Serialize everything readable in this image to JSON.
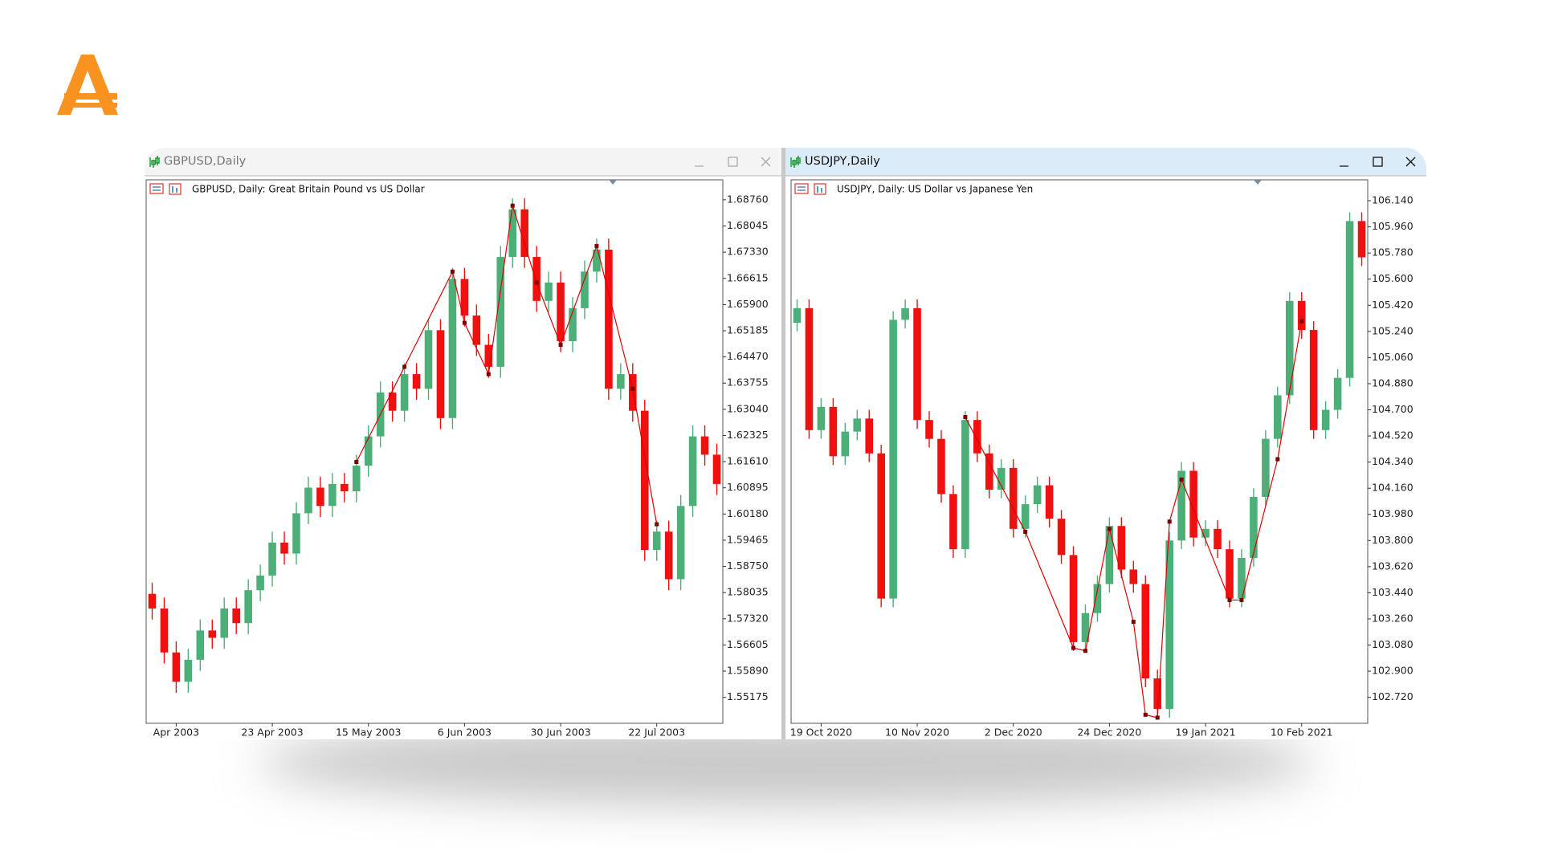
{
  "chart_data": [
    {
      "type": "candlestick",
      "window_title": "GBPUSD,Daily",
      "title": "GBPUSD, Daily:  Great Britain Pound vs US Dollar",
      "categories": [
        null,
        null,
        "Apr 2003",
        null,
        null,
        null,
        null,
        null,
        null,
        null,
        "23 Apr 2003",
        null,
        null,
        null,
        null,
        null,
        null,
        null,
        "15 May 2003",
        null,
        null,
        null,
        null,
        null,
        null,
        null,
        "6 Jun 2003",
        null,
        null,
        null,
        null,
        null,
        null,
        null,
        "30 Jun 2003",
        null,
        null,
        null,
        null,
        null,
        null,
        null,
        "22 Jul 2003",
        null,
        null,
        null,
        null,
        null
      ],
      "open": [
        1.58,
        1.576,
        1.564,
        1.556,
        1.562,
        1.57,
        1.568,
        1.576,
        1.572,
        1.581,
        1.585,
        1.594,
        1.591,
        1.602,
        1.609,
        1.604,
        1.61,
        1.608,
        1.615,
        1.623,
        1.635,
        1.63,
        1.64,
        1.636,
        1.652,
        1.628,
        1.666,
        1.656,
        1.648,
        1.642,
        1.672,
        1.685,
        1.672,
        1.66,
        1.665,
        1.649,
        1.658,
        1.668,
        1.674,
        1.636,
        1.64,
        1.63,
        1.592,
        1.597,
        1.584,
        1.604,
        1.623,
        1.618
      ],
      "high": [
        1.583,
        1.579,
        1.567,
        1.565,
        1.573,
        1.573,
        1.579,
        1.579,
        1.584,
        1.588,
        1.597,
        1.597,
        1.605,
        1.612,
        1.612,
        1.613,
        1.613,
        1.618,
        1.626,
        1.638,
        1.638,
        1.643,
        1.643,
        1.655,
        1.655,
        1.669,
        1.669,
        1.659,
        1.651,
        1.675,
        1.688,
        1.688,
        1.675,
        1.668,
        1.668,
        1.661,
        1.671,
        1.677,
        1.677,
        1.643,
        1.643,
        1.633,
        1.6,
        1.6,
        1.607,
        1.626,
        1.626,
        1.621
      ],
      "low": [
        1.573,
        1.561,
        1.553,
        1.553,
        1.559,
        1.565,
        1.565,
        1.569,
        1.569,
        1.578,
        1.582,
        1.588,
        1.588,
        1.599,
        1.601,
        1.601,
        1.605,
        1.605,
        1.612,
        1.62,
        1.627,
        1.627,
        1.633,
        1.633,
        1.625,
        1.625,
        1.653,
        1.645,
        1.639,
        1.639,
        1.669,
        1.669,
        1.657,
        1.657,
        1.646,
        1.646,
        1.655,
        1.665,
        1.633,
        1.633,
        1.627,
        1.589,
        1.589,
        1.581,
        1.581,
        1.601,
        1.615,
        1.607
      ],
      "close": [
        1.576,
        1.564,
        1.556,
        1.562,
        1.57,
        1.568,
        1.576,
        1.572,
        1.581,
        1.585,
        1.594,
        1.591,
        1.602,
        1.609,
        1.604,
        1.61,
        1.608,
        1.615,
        1.623,
        1.635,
        1.63,
        1.64,
        1.636,
        1.652,
        1.628,
        1.666,
        1.656,
        1.648,
        1.642,
        1.672,
        1.685,
        1.672,
        1.66,
        1.665,
        1.649,
        1.658,
        1.668,
        1.674,
        1.636,
        1.64,
        1.63,
        1.592,
        1.597,
        1.584,
        1.604,
        1.623,
        1.618,
        1.61
      ],
      "zigzag": {
        "x": [
          17,
          21,
          25,
          26,
          28,
          30,
          32,
          34,
          37,
          40,
          42
        ],
        "values": [
          1.616,
          1.642,
          1.668,
          1.654,
          1.64,
          1.686,
          1.665,
          1.648,
          1.675,
          1.636,
          1.599
        ]
      },
      "up_color": "#4caf78",
      "down_color": "#f01010",
      "zigzag_color": "#e00000",
      "ylim": [
        1.54465,
        1.69306
      ],
      "yticks": [
        {
          "value": 1.6876,
          "label": "1.68760"
        },
        {
          "value": 1.68045,
          "label": "1.68045"
        },
        {
          "value": 1.6733,
          "label": "1.67330"
        },
        {
          "value": 1.66615,
          "label": "1.66615"
        },
        {
          "value": 1.659,
          "label": "1.65900"
        },
        {
          "value": 1.65185,
          "label": "1.65185"
        },
        {
          "value": 1.6447,
          "label": "1.64470"
        },
        {
          "value": 1.63755,
          "label": "1.63755"
        },
        {
          "value": 1.6304,
          "label": "1.63040"
        },
        {
          "value": 1.62325,
          "label": "1.62325"
        },
        {
          "value": 1.6161,
          "label": "1.61610"
        },
        {
          "value": 1.60895,
          "label": "1.60895"
        },
        {
          "value": 1.6018,
          "label": "1.60180"
        },
        {
          "value": 1.59465,
          "label": "1.59465"
        },
        {
          "value": 1.5875,
          "label": "1.58750"
        },
        {
          "value": 1.58035,
          "label": "1.58035"
        },
        {
          "value": 1.5732,
          "label": "1.57320"
        },
        {
          "value": 1.56605,
          "label": "1.56605"
        },
        {
          "value": 1.5589,
          "label": "1.55890"
        },
        {
          "value": 1.55175,
          "label": "1.55175"
        }
      ],
      "active": false
    },
    {
      "type": "candlestick",
      "window_title": "USDJPY,Daily",
      "title": "USDJPY, Daily:  US Dollar vs Japanese Yen",
      "categories": [
        null,
        null,
        "19 Oct 2020",
        null,
        null,
        null,
        null,
        null,
        null,
        null,
        "10 Nov 2020",
        null,
        null,
        null,
        null,
        null,
        null,
        null,
        "2 Dec 2020",
        null,
        null,
        null,
        null,
        null,
        null,
        null,
        "24 Dec 2020",
        null,
        null,
        null,
        null,
        null,
        null,
        null,
        "19 Jan 2021",
        null,
        null,
        null,
        null,
        null,
        null,
        null,
        "10 Feb 2021",
        null,
        null,
        null,
        null,
        null
      ],
      "open": [
        105.3,
        105.4,
        104.56,
        104.72,
        104.38,
        104.55,
        104.64,
        104.4,
        103.4,
        105.32,
        105.4,
        104.63,
        104.5,
        104.12,
        103.74,
        104.63,
        104.4,
        104.15,
        104.3,
        103.88,
        104.05,
        104.18,
        103.95,
        103.7,
        103.1,
        103.3,
        103.5,
        103.9,
        103.6,
        103.5,
        102.85,
        102.64,
        103.8,
        104.28,
        103.82,
        103.88,
        103.74,
        103.4,
        103.68,
        104.1,
        104.5,
        104.8,
        105.45,
        105.25,
        104.56,
        104.7,
        104.92,
        106.0
      ],
      "high": [
        105.46,
        105.46,
        104.78,
        104.78,
        104.61,
        104.7,
        104.7,
        104.46,
        105.38,
        105.46,
        105.46,
        104.69,
        104.56,
        104.18,
        104.69,
        104.69,
        104.46,
        104.36,
        104.36,
        104.11,
        104.24,
        104.24,
        104.01,
        103.76,
        103.36,
        103.56,
        103.96,
        103.96,
        103.66,
        103.56,
        102.91,
        103.86,
        104.34,
        104.34,
        103.94,
        103.94,
        103.8,
        103.74,
        104.16,
        104.56,
        104.86,
        105.51,
        105.51,
        105.31,
        104.76,
        104.98,
        106.06,
        106.06
      ],
      "low": [
        105.24,
        104.5,
        104.5,
        104.32,
        104.32,
        104.49,
        104.34,
        103.34,
        103.34,
        105.26,
        104.57,
        104.44,
        104.06,
        103.68,
        103.68,
        104.34,
        104.09,
        104.09,
        103.82,
        103.82,
        103.99,
        103.89,
        103.64,
        103.04,
        103.04,
        103.24,
        103.44,
        103.54,
        103.44,
        102.79,
        102.58,
        102.58,
        103.74,
        103.76,
        103.76,
        103.68,
        103.34,
        103.34,
        103.62,
        104.04,
        104.44,
        104.74,
        105.19,
        104.5,
        104.5,
        104.64,
        104.86,
        105.69
      ],
      "close": [
        105.4,
        104.56,
        104.72,
        104.38,
        104.55,
        104.64,
        104.4,
        103.4,
        105.32,
        105.4,
        104.63,
        104.5,
        104.12,
        103.74,
        104.63,
        104.4,
        104.15,
        104.3,
        103.88,
        104.05,
        104.18,
        103.95,
        103.7,
        103.1,
        103.3,
        103.5,
        103.9,
        103.6,
        103.5,
        102.85,
        102.64,
        103.8,
        104.28,
        103.82,
        103.88,
        103.74,
        103.4,
        103.68,
        104.1,
        104.5,
        104.8,
        105.45,
        105.25,
        104.56,
        104.7,
        104.92,
        106.0,
        105.75
      ],
      "zigzag": {
        "x": [
          14,
          19,
          23,
          24,
          26,
          28,
          29,
          30,
          31,
          32,
          36,
          37,
          40,
          42
        ],
        "values": [
          104.65,
          103.86,
          103.06,
          103.04,
          103.88,
          103.24,
          102.6,
          102.58,
          103.93,
          104.22,
          103.39,
          103.39,
          104.36,
          105.31
        ]
      },
      "up_color": "#4caf78",
      "down_color": "#f01010",
      "zigzag_color": "#e00000",
      "ylim": [
        102.541,
        106.284
      ],
      "yticks": [
        {
          "value": 106.14,
          "label": "106.140"
        },
        {
          "value": 105.96,
          "label": "105.960"
        },
        {
          "value": 105.78,
          "label": "105.780"
        },
        {
          "value": 105.6,
          "label": "105.600"
        },
        {
          "value": 105.42,
          "label": "105.420"
        },
        {
          "value": 105.24,
          "label": "105.240"
        },
        {
          "value": 105.06,
          "label": "105.060"
        },
        {
          "value": 104.88,
          "label": "104.880"
        },
        {
          "value": 104.7,
          "label": "104.700"
        },
        {
          "value": 104.52,
          "label": "104.520"
        },
        {
          "value": 104.34,
          "label": "104.340"
        },
        {
          "value": 104.16,
          "label": "104.160"
        },
        {
          "value": 103.98,
          "label": "103.980"
        },
        {
          "value": 103.8,
          "label": "103.800"
        },
        {
          "value": 103.62,
          "label": "103.620"
        },
        {
          "value": 103.44,
          "label": "103.440"
        },
        {
          "value": 103.26,
          "label": "103.260"
        },
        {
          "value": 103.08,
          "label": "103.080"
        },
        {
          "value": 102.9,
          "label": "102.900"
        },
        {
          "value": 102.72,
          "label": "102.720"
        }
      ],
      "active": true
    }
  ]
}
